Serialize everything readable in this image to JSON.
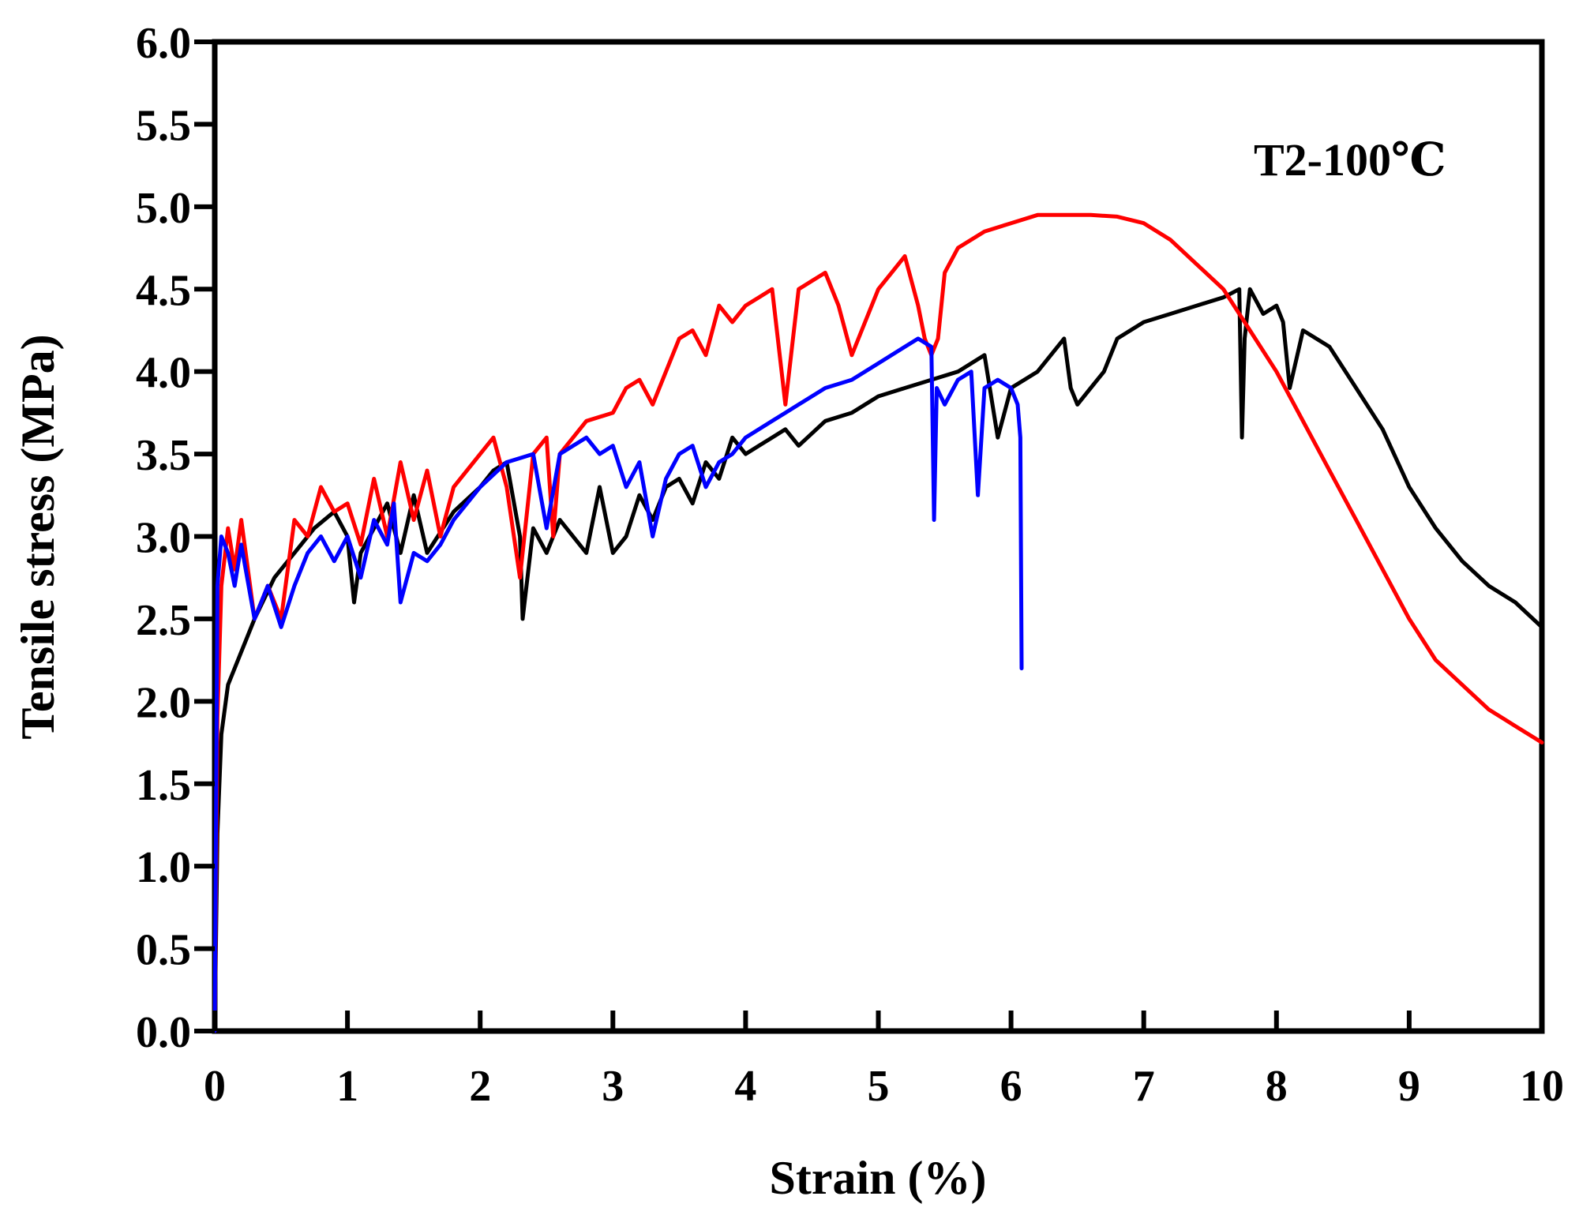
{
  "chart_data": {
    "type": "line",
    "title": "",
    "annotation": "T2-100℃",
    "xlabel": "Strain (%)",
    "ylabel": "Tensile stress (MPa)",
    "xlim": [
      0,
      10
    ],
    "ylim": [
      0,
      6
    ],
    "x_ticks": [
      0,
      1,
      2,
      3,
      4,
      5,
      6,
      7,
      8,
      9,
      10
    ],
    "x_tick_labels": [
      "0",
      "1",
      "2",
      "3",
      "4",
      "5",
      "6",
      "7",
      "8",
      "9",
      "10"
    ],
    "y_ticks": [
      0,
      0.5,
      1,
      1.5,
      2,
      2.5,
      3,
      3.5,
      4,
      4.5,
      5,
      5.5,
      6
    ],
    "y_tick_labels": [
      "0.0",
      "0.5",
      "1.0",
      "1.5",
      "2.0",
      "2.5",
      "3.0",
      "3.5",
      "4.0",
      "4.5",
      "5.0",
      "5.5",
      "6.0"
    ],
    "grid": false,
    "legend": "none",
    "series": [
      {
        "name": "black specimen",
        "color": "#000000",
        "x": [
          0,
          0.02,
          0.05,
          0.1,
          0.2,
          0.3,
          0.45,
          0.6,
          0.75,
          0.9,
          1.0,
          1.05,
          1.1,
          1.2,
          1.3,
          1.4,
          1.5,
          1.6,
          1.8,
          2.0,
          2.1,
          2.2,
          2.3,
          2.32,
          2.4,
          2.5,
          2.6,
          2.8,
          2.9,
          3.0,
          3.1,
          3.2,
          3.3,
          3.4,
          3.5,
          3.6,
          3.7,
          3.8,
          3.9,
          4.0,
          4.1,
          4.2,
          4.3,
          4.4,
          4.6,
          4.8,
          5.0,
          5.2,
          5.4,
          5.6,
          5.8,
          5.9,
          6.0,
          6.2,
          6.4,
          6.45,
          6.5,
          6.6,
          6.7,
          6.8,
          7.0,
          7.2,
          7.4,
          7.6,
          7.72,
          7.74,
          7.76,
          7.8,
          7.9,
          8.0,
          8.05,
          8.1,
          8.2,
          8.4,
          8.6,
          8.8,
          9.0,
          9.2,
          9.4,
          9.6,
          9.8,
          10.0
        ],
        "values": [
          0,
          1.2,
          1.8,
          2.1,
          2.3,
          2.5,
          2.75,
          2.9,
          3.05,
          3.15,
          3.0,
          2.6,
          2.9,
          3.05,
          3.2,
          2.9,
          3.25,
          2.9,
          3.15,
          3.3,
          3.4,
          3.45,
          3.0,
          2.5,
          3.05,
          2.9,
          3.1,
          2.9,
          3.3,
          2.9,
          3.0,
          3.25,
          3.1,
          3.3,
          3.35,
          3.2,
          3.45,
          3.35,
          3.6,
          3.5,
          3.55,
          3.6,
          3.65,
          3.55,
          3.7,
          3.75,
          3.85,
          3.9,
          3.95,
          4.0,
          4.1,
          3.6,
          3.9,
          4.0,
          4.2,
          3.9,
          3.8,
          3.9,
          4.0,
          4.2,
          4.3,
          4.35,
          4.4,
          4.45,
          4.5,
          3.6,
          4.2,
          4.5,
          4.35,
          4.4,
          4.3,
          3.9,
          4.25,
          4.15,
          3.9,
          3.65,
          3.3,
          3.05,
          2.85,
          2.7,
          2.6,
          2.45
        ]
      },
      {
        "name": "red specimen",
        "color": "#ff0000",
        "x": [
          0,
          0.02,
          0.05,
          0.1,
          0.15,
          0.2,
          0.3,
          0.4,
          0.5,
          0.6,
          0.7,
          0.8,
          0.9,
          1.0,
          1.1,
          1.2,
          1.3,
          1.4,
          1.5,
          1.6,
          1.7,
          1.8,
          2.0,
          2.1,
          2.2,
          2.3,
          2.4,
          2.5,
          2.55,
          2.6,
          2.7,
          2.8,
          3.0,
          3.1,
          3.2,
          3.3,
          3.5,
          3.6,
          3.7,
          3.8,
          3.9,
          4.0,
          4.1,
          4.2,
          4.3,
          4.4,
          4.5,
          4.6,
          4.7,
          4.8,
          4.9,
          5.0,
          5.1,
          5.2,
          5.3,
          5.35,
          5.4,
          5.45,
          5.5,
          5.6,
          5.8,
          6.0,
          6.2,
          6.4,
          6.6,
          6.8,
          7.0,
          7.2,
          7.4,
          7.6,
          7.8,
          8.0,
          8.2,
          8.4,
          8.6,
          8.8,
          9.0,
          9.2,
          9.4,
          9.6,
          9.8,
          10.0
        ],
        "values": [
          0,
          1.9,
          2.7,
          3.05,
          2.8,
          3.1,
          2.5,
          2.7,
          2.5,
          3.1,
          3.0,
          3.3,
          3.15,
          3.2,
          2.95,
          3.35,
          3.0,
          3.45,
          3.1,
          3.4,
          3.0,
          3.3,
          3.5,
          3.6,
          3.3,
          2.75,
          3.5,
          3.6,
          3.0,
          3.5,
          3.6,
          3.7,
          3.75,
          3.9,
          3.95,
          3.8,
          4.2,
          4.25,
          4.1,
          4.4,
          4.3,
          4.4,
          4.45,
          4.5,
          3.8,
          4.5,
          4.55,
          4.6,
          4.4,
          4.1,
          4.3,
          4.5,
          4.6,
          4.7,
          4.4,
          4.2,
          4.1,
          4.2,
          4.6,
          4.75,
          4.85,
          4.9,
          4.95,
          4.95,
          4.95,
          4.94,
          4.9,
          4.8,
          4.65,
          4.5,
          4.25,
          4.0,
          3.7,
          3.4,
          3.1,
          2.8,
          2.5,
          2.25,
          2.1,
          1.95,
          1.85,
          1.75
        ]
      },
      {
        "name": "blue specimen",
        "color": "#0000ff",
        "x": [
          0,
          0.02,
          0.05,
          0.1,
          0.15,
          0.2,
          0.3,
          0.4,
          0.5,
          0.6,
          0.7,
          0.8,
          0.9,
          1.0,
          1.1,
          1.2,
          1.3,
          1.35,
          1.4,
          1.5,
          1.6,
          1.7,
          1.8,
          2.0,
          2.2,
          2.4,
          2.5,
          2.6,
          2.7,
          2.8,
          2.9,
          3.0,
          3.1,
          3.2,
          3.3,
          3.4,
          3.5,
          3.6,
          3.7,
          3.8,
          3.9,
          4.0,
          4.1,
          4.2,
          4.3,
          4.4,
          4.6,
          4.8,
          5.0,
          5.2,
          5.3,
          5.4,
          5.42,
          5.44,
          5.5,
          5.6,
          5.7,
          5.75,
          5.8,
          5.9,
          6.0,
          6.05,
          6.07,
          6.08
        ],
        "values": [
          0,
          2.7,
          3.0,
          2.9,
          2.7,
          2.95,
          2.5,
          2.7,
          2.45,
          2.7,
          2.9,
          3.0,
          2.85,
          3.0,
          2.75,
          3.1,
          2.95,
          3.2,
          2.6,
          2.9,
          2.85,
          2.95,
          3.1,
          3.3,
          3.45,
          3.5,
          3.05,
          3.5,
          3.55,
          3.6,
          3.5,
          3.55,
          3.3,
          3.45,
          3.0,
          3.35,
          3.5,
          3.55,
          3.3,
          3.45,
          3.5,
          3.6,
          3.65,
          3.7,
          3.75,
          3.8,
          3.9,
          3.95,
          4.05,
          4.15,
          4.2,
          4.15,
          3.1,
          3.9,
          3.8,
          3.95,
          4.0,
          3.25,
          3.9,
          3.95,
          3.9,
          3.8,
          3.6,
          2.2
        ]
      }
    ]
  }
}
